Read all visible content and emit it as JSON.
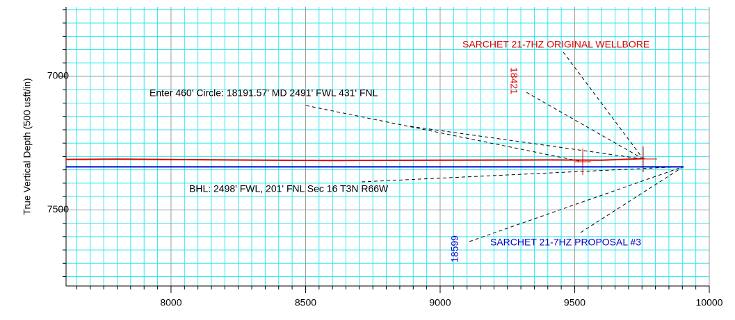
{
  "chart_data": {
    "type": "line",
    "ylabel": "True Vertical Depth (500 usft/in)",
    "xlim": [
      7610,
      10000
    ],
    "ylim": [
      6740,
      7785
    ],
    "y_inverted": true,
    "grid": true,
    "xticks": [
      8000,
      8500,
      9000,
      9500,
      10000
    ],
    "yticks": [
      7000,
      7500
    ],
    "xminor": [
      7650,
      7700,
      7750,
      7800,
      7850,
      7900,
      7950,
      8050,
      8100,
      8150,
      8200,
      8250,
      8300,
      8350,
      8400,
      8450,
      8550,
      8600,
      8650,
      8700,
      8750,
      8800,
      8850,
      8900,
      8950,
      9050,
      9100,
      9150,
      9200,
      9250,
      9300,
      9350,
      9400,
      9450,
      9550,
      9600,
      9650,
      9700,
      9750,
      9800,
      9850,
      9900,
      9950
    ],
    "yminor": [
      6750,
      6800,
      6850,
      6900,
      6950,
      7050,
      7100,
      7150,
      7200,
      7250,
      7300,
      7350,
      7400,
      7450,
      7550,
      7600,
      7650,
      7700,
      7750
    ],
    "series": [
      {
        "name": "SARCHET 21-7HZ ORIGINAL WELLBORE",
        "color": "#e00000",
        "x": [
          7610,
          7800,
          8200,
          8600,
          9000,
          9400,
          9600,
          9760
        ],
        "values": [
          7311,
          7310,
          7313,
          7315,
          7314,
          7313,
          7314,
          7308
        ]
      },
      {
        "name": "SARCHET 21-7HZ PROPOSAL #3",
        "color": "#0000d0",
        "x": [
          7610,
          9905
        ],
        "values": [
          7339,
          7339
        ]
      }
    ],
    "annotations": [
      "18421",
      "Enter 460' Circle: 18191.57' MD 2491' FWL 431' FNL",
      "BHL: 2498' FWL, 201' FNL Sec 16 T3N R66W",
      "18599"
    ]
  }
}
